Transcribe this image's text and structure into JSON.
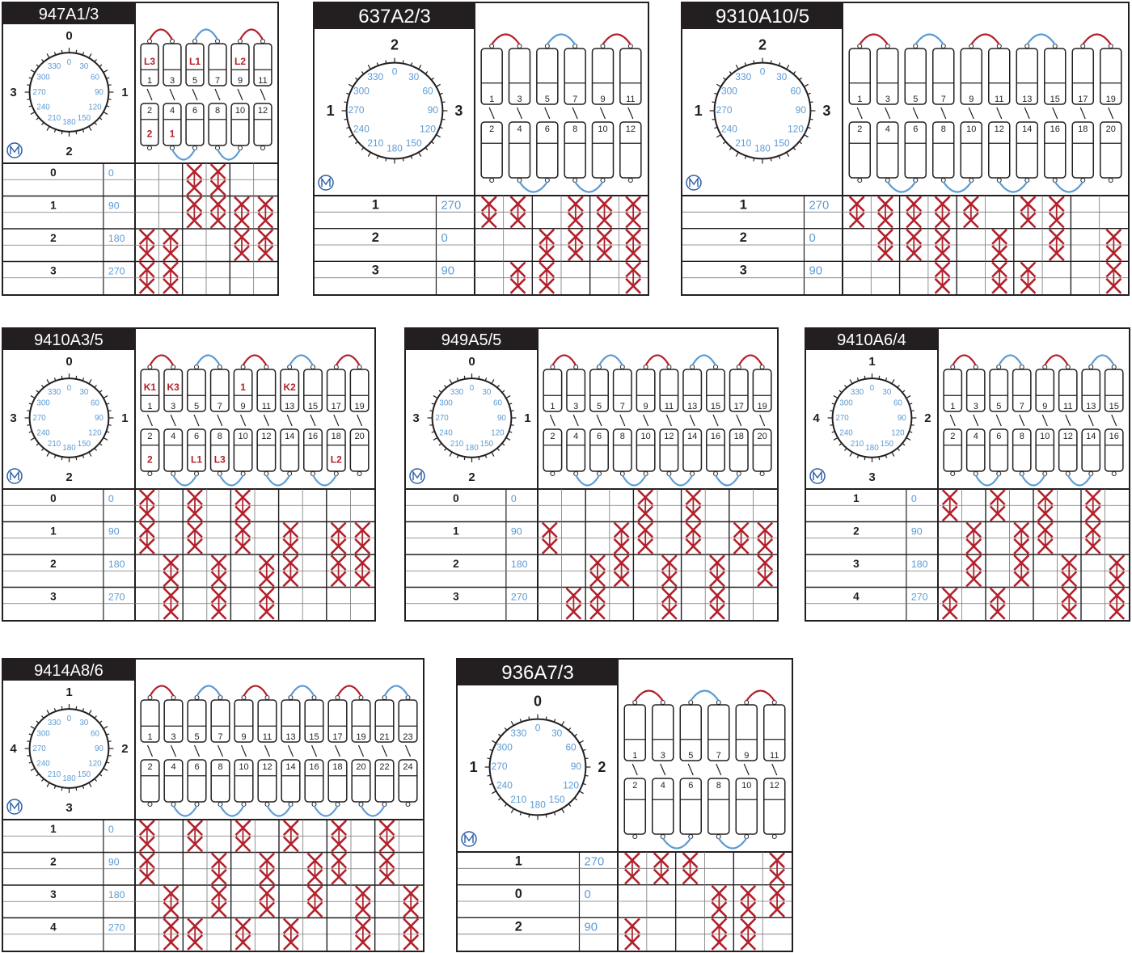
{
  "colors": {
    "frame": "#231f20",
    "red": "#b3202a",
    "blue": "#5b9bd5",
    "dial_text": "#5b9bd5",
    "table_angle": "#5b9bd5",
    "title_bg": "#231f20",
    "title_text": "#ffffff"
  },
  "dial_degree_labels": [
    "0",
    "30",
    "60",
    "90",
    "120",
    "150",
    "180",
    "210",
    "240",
    "270",
    "300",
    "330"
  ],
  "panels": [
    {
      "title": "947A1/3",
      "terminals_top": [
        "1",
        "3",
        "5",
        "7",
        "9",
        "11"
      ],
      "terminals_bottom": [
        "2",
        "4",
        "6",
        "8",
        "10",
        "12"
      ],
      "phase_labels_top": {
        "1": "L3",
        "5": "L1",
        "9": "L2"
      },
      "phase_labels_bottom": {
        "2": "2",
        "4": "1"
      },
      "dial_positions": {
        "top": "0",
        "right": "1",
        "bottom": "2",
        "left": "3"
      },
      "rows": [
        {
          "position": "0",
          "angle": "0"
        },
        {
          "position": "1",
          "angle": "90"
        },
        {
          "position": "2",
          "angle": "180"
        },
        {
          "position": "3",
          "angle": "270"
        }
      ],
      "closed_contacts": [
        [
          0,
          2
        ],
        [
          0,
          3
        ],
        [
          1,
          2
        ],
        [
          1,
          3
        ],
        [
          1,
          4
        ],
        [
          1,
          5
        ],
        [
          2,
          0
        ],
        [
          2,
          1
        ],
        [
          2,
          4
        ],
        [
          2,
          5
        ],
        [
          3,
          0
        ],
        [
          3,
          1
        ]
      ]
    },
    {
      "title": "637A2/3",
      "terminals_top": [
        "1",
        "3",
        "5",
        "7",
        "9",
        "11"
      ],
      "terminals_bottom": [
        "2",
        "4",
        "6",
        "8",
        "10",
        "12"
      ],
      "phase_labels_top": {},
      "phase_labels_bottom": {},
      "dial_positions": {
        "top": "2",
        "right": "3",
        "bottom": "",
        "left": "1"
      },
      "rows": [
        {
          "position": "1",
          "angle": "270"
        },
        {
          "position": "2",
          "angle": "0"
        },
        {
          "position": "3",
          "angle": "90"
        }
      ],
      "closed_contacts": [
        [
          0,
          0
        ],
        [
          0,
          1
        ],
        [
          0,
          3
        ],
        [
          0,
          4
        ],
        [
          0,
          5
        ],
        [
          1,
          2
        ],
        [
          1,
          3
        ],
        [
          1,
          4
        ],
        [
          1,
          5
        ],
        [
          2,
          1
        ],
        [
          2,
          2
        ],
        [
          2,
          5
        ]
      ]
    },
    {
      "title": "9310A10/5",
      "terminals_top": [
        "1",
        "3",
        "5",
        "7",
        "9",
        "11",
        "13",
        "15",
        "17",
        "19"
      ],
      "terminals_bottom": [
        "2",
        "4",
        "6",
        "8",
        "10",
        "12",
        "14",
        "16",
        "18",
        "20"
      ],
      "phase_labels_top": {},
      "phase_labels_bottom": {},
      "dial_positions": {
        "top": "2",
        "right": "3",
        "bottom": "",
        "left": "1"
      },
      "rows": [
        {
          "position": "1",
          "angle": "270"
        },
        {
          "position": "2",
          "angle": "0"
        },
        {
          "position": "3",
          "angle": "90"
        }
      ],
      "closed_contacts": [
        [
          0,
          0
        ],
        [
          0,
          1
        ],
        [
          0,
          2
        ],
        [
          0,
          3
        ],
        [
          0,
          4
        ],
        [
          0,
          6
        ],
        [
          0,
          7
        ],
        [
          1,
          1
        ],
        [
          1,
          2
        ],
        [
          1,
          3
        ],
        [
          1,
          5
        ],
        [
          1,
          7
        ],
        [
          1,
          9
        ],
        [
          2,
          3
        ],
        [
          2,
          5
        ],
        [
          2,
          6
        ],
        [
          2,
          9
        ]
      ]
    },
    {
      "title": "9410A3/5",
      "terminals_top": [
        "1",
        "3",
        "5",
        "7",
        "9",
        "11",
        "13",
        "15",
        "17",
        "19"
      ],
      "terminals_bottom": [
        "2",
        "4",
        "6",
        "8",
        "10",
        "12",
        "14",
        "16",
        "18",
        "20"
      ],
      "phase_labels_top": {
        "1": "K1",
        "3": "K3",
        "9": "1",
        "13": "K2"
      },
      "phase_labels_bottom": {
        "2": "2",
        "6": "L1",
        "8": "L3",
        "18": "L2"
      },
      "dial_positions": {
        "top": "0",
        "right": "1",
        "bottom": "2",
        "left": "3"
      },
      "rows": [
        {
          "position": "0",
          "angle": "0"
        },
        {
          "position": "1",
          "angle": "90"
        },
        {
          "position": "2",
          "angle": "180"
        },
        {
          "position": "3",
          "angle": "270"
        }
      ],
      "closed_contacts": [
        [
          0,
          0
        ],
        [
          0,
          2
        ],
        [
          0,
          4
        ],
        [
          1,
          0
        ],
        [
          1,
          2
        ],
        [
          1,
          4
        ],
        [
          1,
          6
        ],
        [
          1,
          8
        ],
        [
          1,
          9
        ],
        [
          2,
          1
        ],
        [
          2,
          3
        ],
        [
          2,
          5
        ],
        [
          2,
          6
        ],
        [
          2,
          8
        ],
        [
          2,
          9
        ],
        [
          3,
          1
        ],
        [
          3,
          3
        ],
        [
          3,
          5
        ]
      ]
    },
    {
      "title": "949A5/5",
      "terminals_top": [
        "1",
        "3",
        "5",
        "7",
        "9",
        "11",
        "13",
        "15",
        "17",
        "19"
      ],
      "terminals_bottom": [
        "2",
        "4",
        "6",
        "8",
        "10",
        "12",
        "14",
        "16",
        "18",
        "20"
      ],
      "phase_labels_top": {},
      "phase_labels_bottom": {},
      "dial_positions": {
        "top": "0",
        "right": "1",
        "bottom": "2",
        "left": "3"
      },
      "rows": [
        {
          "position": "0",
          "angle": "0"
        },
        {
          "position": "1",
          "angle": "90"
        },
        {
          "position": "2",
          "angle": "180"
        },
        {
          "position": "3",
          "angle": "270"
        }
      ],
      "closed_contacts": [
        [
          0,
          4
        ],
        [
          0,
          6
        ],
        [
          1,
          0
        ],
        [
          1,
          3
        ],
        [
          1,
          4
        ],
        [
          1,
          6
        ],
        [
          1,
          8
        ],
        [
          1,
          9
        ],
        [
          2,
          2
        ],
        [
          2,
          3
        ],
        [
          2,
          5
        ],
        [
          2,
          7
        ],
        [
          2,
          9
        ],
        [
          3,
          1
        ],
        [
          3,
          2
        ],
        [
          3,
          5
        ],
        [
          3,
          7
        ]
      ]
    },
    {
      "title": "9410A6/4",
      "terminals_top": [
        "1",
        "3",
        "5",
        "7",
        "9",
        "11",
        "13"
      ],
      "terminals_bottom": [
        "2",
        "4",
        "6",
        "8",
        "10",
        "12",
        "14",
        "16"
      ],
      "phase_labels_top": {},
      "phase_labels_bottom": {},
      "terminals_top_extra": [
        "15"
      ],
      "dial_positions": {
        "top": "1",
        "right": "2",
        "bottom": "3",
        "left": "4"
      },
      "rows": [
        {
          "position": "1",
          "angle": "0"
        },
        {
          "position": "2",
          "angle": "90"
        },
        {
          "position": "3",
          "angle": "180"
        },
        {
          "position": "4",
          "angle": "270"
        }
      ],
      "closed_contacts": [
        [
          0,
          0
        ],
        [
          0,
          2
        ],
        [
          0,
          4
        ],
        [
          0,
          6
        ],
        [
          1,
          1
        ],
        [
          1,
          3
        ],
        [
          1,
          4
        ],
        [
          1,
          6
        ],
        [
          2,
          1
        ],
        [
          2,
          3
        ],
        [
          2,
          5
        ],
        [
          2,
          7
        ],
        [
          3,
          0
        ],
        [
          3,
          2
        ],
        [
          3,
          5
        ],
        [
          3,
          7
        ]
      ]
    },
    {
      "title": "9414A8/6",
      "terminals_top": [
        "1",
        "3",
        "5",
        "7",
        "9",
        "11",
        "13",
        "15",
        "17",
        "19",
        "21",
        "23"
      ],
      "terminals_bottom": [
        "2",
        "4",
        "6",
        "8",
        "10",
        "12",
        "14",
        "16",
        "18",
        "20",
        "22",
        "24"
      ],
      "phase_labels_top": {},
      "phase_labels_bottom": {},
      "dial_positions": {
        "top": "1",
        "right": "2",
        "bottom": "3",
        "left": "4"
      },
      "rows": [
        {
          "position": "1",
          "angle": "0"
        },
        {
          "position": "2",
          "angle": "90"
        },
        {
          "position": "3",
          "angle": "180"
        },
        {
          "position": "4",
          "angle": "270"
        }
      ],
      "closed_contacts": [
        [
          0,
          0
        ],
        [
          0,
          2
        ],
        [
          0,
          4
        ],
        [
          0,
          6
        ],
        [
          0,
          8
        ],
        [
          0,
          10
        ],
        [
          1,
          0
        ],
        [
          1,
          3
        ],
        [
          1,
          5
        ],
        [
          1,
          7
        ],
        [
          1,
          8
        ],
        [
          1,
          10
        ],
        [
          2,
          1
        ],
        [
          2,
          3
        ],
        [
          2,
          5
        ],
        [
          2,
          7
        ],
        [
          2,
          9
        ],
        [
          2,
          11
        ],
        [
          3,
          1
        ],
        [
          3,
          2
        ],
        [
          3,
          4
        ],
        [
          3,
          6
        ],
        [
          3,
          9
        ],
        [
          3,
          11
        ]
      ]
    },
    {
      "title": "936A7/3",
      "terminals_top": [
        "1",
        "3",
        "5",
        "7",
        "9",
        "11"
      ],
      "terminals_bottom": [
        "2",
        "4",
        "6",
        "8",
        "10",
        "12"
      ],
      "phase_labels_top": {},
      "phase_labels_bottom": {},
      "dial_positions": {
        "top": "0",
        "right": "2",
        "bottom": "",
        "left": "1"
      },
      "rows": [
        {
          "position": "1",
          "angle": "270"
        },
        {
          "position": "0",
          "angle": "0"
        },
        {
          "position": "2",
          "angle": "90"
        }
      ],
      "closed_contacts": [
        [
          0,
          0
        ],
        [
          0,
          1
        ],
        [
          0,
          2
        ],
        [
          0,
          5
        ],
        [
          1,
          3
        ],
        [
          1,
          4
        ],
        [
          1,
          5
        ],
        [
          2,
          0
        ],
        [
          2,
          3
        ],
        [
          2,
          4
        ]
      ]
    }
  ]
}
